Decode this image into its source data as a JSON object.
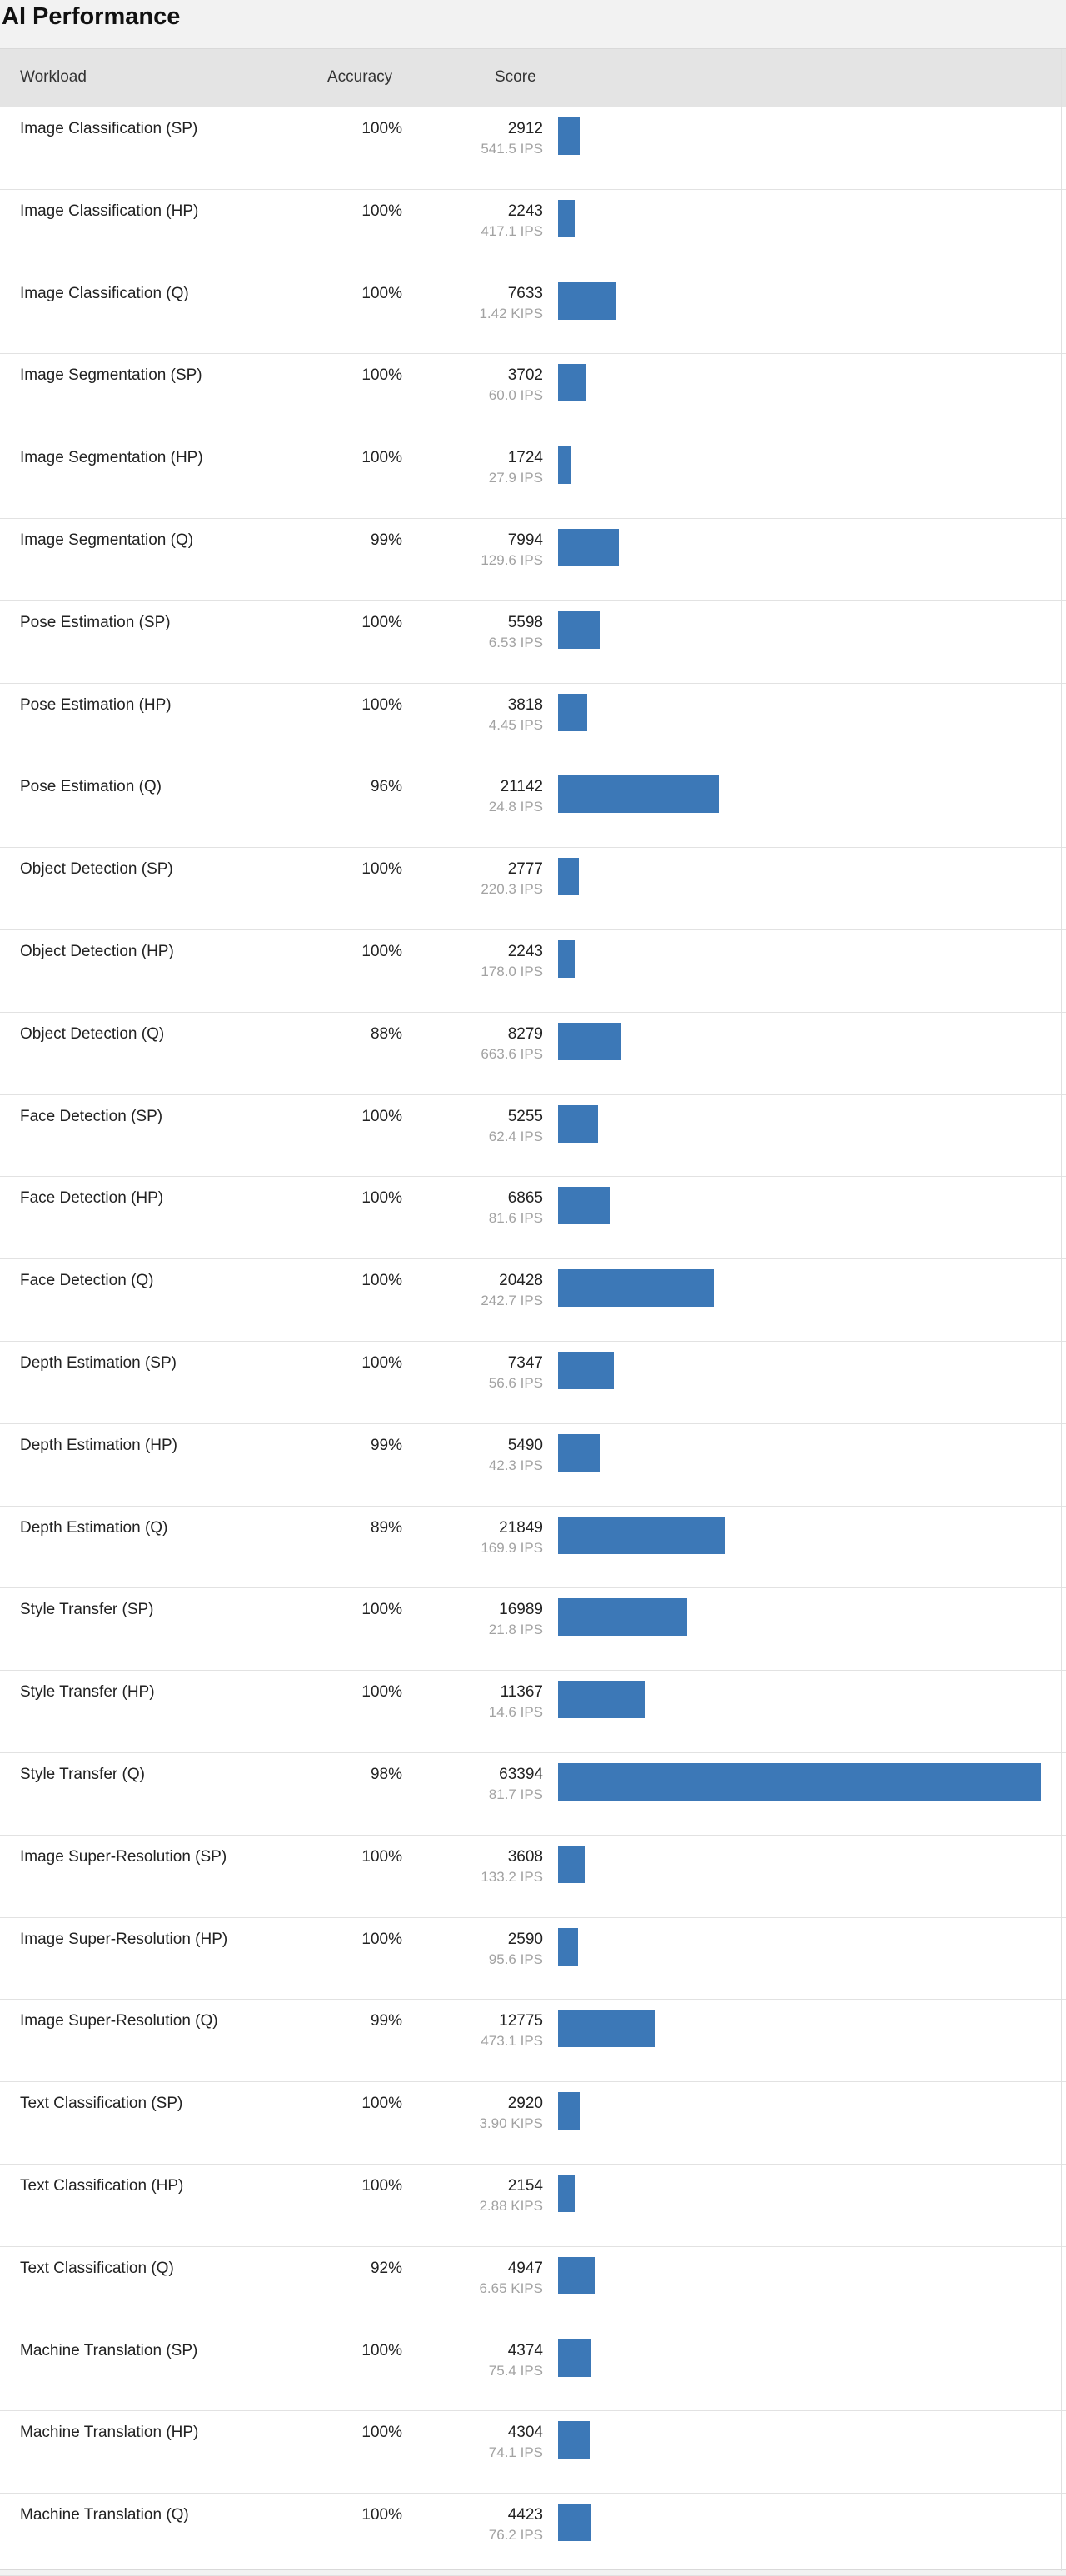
{
  "page": {
    "title": "AI Performance"
  },
  "table": {
    "headers": {
      "workload": "Workload",
      "accuracy": "Accuracy",
      "score": "Score"
    },
    "max_score": 63394,
    "bar_color": "#3c78b7",
    "rows": [
      {
        "name": "Image Classification (SP)",
        "accuracy": "100%",
        "score": "2912",
        "rate": "541.5 IPS",
        "value": 2912
      },
      {
        "name": "Image Classification (HP)",
        "accuracy": "100%",
        "score": "2243",
        "rate": "417.1 IPS",
        "value": 2243
      },
      {
        "name": "Image Classification (Q)",
        "accuracy": "100%",
        "score": "7633",
        "rate": "1.42 KIPS",
        "value": 7633
      },
      {
        "name": "Image Segmentation (SP)",
        "accuracy": "100%",
        "score": "3702",
        "rate": "60.0 IPS",
        "value": 3702
      },
      {
        "name": "Image Segmentation (HP)",
        "accuracy": "100%",
        "score": "1724",
        "rate": "27.9 IPS",
        "value": 1724
      },
      {
        "name": "Image Segmentation (Q)",
        "accuracy": "99%",
        "score": "7994",
        "rate": "129.6 IPS",
        "value": 7994
      },
      {
        "name": "Pose Estimation (SP)",
        "accuracy": "100%",
        "score": "5598",
        "rate": "6.53 IPS",
        "value": 5598
      },
      {
        "name": "Pose Estimation (HP)",
        "accuracy": "100%",
        "score": "3818",
        "rate": "4.45 IPS",
        "value": 3818
      },
      {
        "name": "Pose Estimation (Q)",
        "accuracy": "96%",
        "score": "21142",
        "rate": "24.8 IPS",
        "value": 21142
      },
      {
        "name": "Object Detection (SP)",
        "accuracy": "100%",
        "score": "2777",
        "rate": "220.3 IPS",
        "value": 2777
      },
      {
        "name": "Object Detection (HP)",
        "accuracy": "100%",
        "score": "2243",
        "rate": "178.0 IPS",
        "value": 2243
      },
      {
        "name": "Object Detection (Q)",
        "accuracy": "88%",
        "score": "8279",
        "rate": "663.6 IPS",
        "value": 8279
      },
      {
        "name": "Face Detection (SP)",
        "accuracy": "100%",
        "score": "5255",
        "rate": "62.4 IPS",
        "value": 5255
      },
      {
        "name": "Face Detection (HP)",
        "accuracy": "100%",
        "score": "6865",
        "rate": "81.6 IPS",
        "value": 6865
      },
      {
        "name": "Face Detection (Q)",
        "accuracy": "100%",
        "score": "20428",
        "rate": "242.7 IPS",
        "value": 20428
      },
      {
        "name": "Depth Estimation (SP)",
        "accuracy": "100%",
        "score": "7347",
        "rate": "56.6 IPS",
        "value": 7347
      },
      {
        "name": "Depth Estimation (HP)",
        "accuracy": "99%",
        "score": "5490",
        "rate": "42.3 IPS",
        "value": 5490
      },
      {
        "name": "Depth Estimation (Q)",
        "accuracy": "89%",
        "score": "21849",
        "rate": "169.9 IPS",
        "value": 21849
      },
      {
        "name": "Style Transfer (SP)",
        "accuracy": "100%",
        "score": "16989",
        "rate": "21.8 IPS",
        "value": 16989
      },
      {
        "name": "Style Transfer (HP)",
        "accuracy": "100%",
        "score": "11367",
        "rate": "14.6 IPS",
        "value": 11367
      },
      {
        "name": "Style Transfer (Q)",
        "accuracy": "98%",
        "score": "63394",
        "rate": "81.7 IPS",
        "value": 63394
      },
      {
        "name": "Image Super-Resolution (SP)",
        "accuracy": "100%",
        "score": "3608",
        "rate": "133.2 IPS",
        "value": 3608
      },
      {
        "name": "Image Super-Resolution (HP)",
        "accuracy": "100%",
        "score": "2590",
        "rate": "95.6 IPS",
        "value": 2590
      },
      {
        "name": "Image Super-Resolution (Q)",
        "accuracy": "99%",
        "score": "12775",
        "rate": "473.1 IPS",
        "value": 12775
      },
      {
        "name": "Text Classification (SP)",
        "accuracy": "100%",
        "score": "2920",
        "rate": "3.90 KIPS",
        "value": 2920
      },
      {
        "name": "Text Classification (HP)",
        "accuracy": "100%",
        "score": "2154",
        "rate": "2.88 KIPS",
        "value": 2154
      },
      {
        "name": "Text Classification (Q)",
        "accuracy": "92%",
        "score": "4947",
        "rate": "6.65 KIPS",
        "value": 4947
      },
      {
        "name": "Machine Translation (SP)",
        "accuracy": "100%",
        "score": "4374",
        "rate": "75.4 IPS",
        "value": 4374
      },
      {
        "name": "Machine Translation (HP)",
        "accuracy": "100%",
        "score": "4304",
        "rate": "74.1 IPS",
        "value": 4304
      },
      {
        "name": "Machine Translation (Q)",
        "accuracy": "100%",
        "score": "4423",
        "rate": "76.2 IPS",
        "value": 4423
      }
    ]
  }
}
